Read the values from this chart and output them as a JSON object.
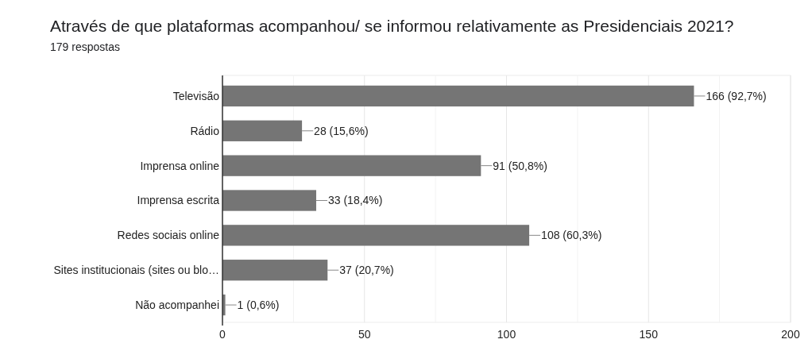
{
  "chart_data": {
    "type": "bar",
    "orientation": "horizontal",
    "title": "Através de que plataformas acompanhou/ se informou relativamente as Presidenciais 2021?",
    "subtitle": "179 respostas",
    "categories": [
      "Televisão",
      "Rádio",
      "Imprensa online",
      "Imprensa escrita",
      "Redes sociais online",
      "Sites institucionais (sites ou blo…",
      "Não acompanhei"
    ],
    "values": [
      166,
      28,
      91,
      33,
      108,
      37,
      1
    ],
    "color": "#757575",
    "value_labels": [
      "166 (92,7%)",
      "28 (15,6%)",
      "91 (50,8%)",
      "33 (18,4%)",
      "108 (60,3%)",
      "37 (20,7%)",
      "1 (0,6%)"
    ],
    "xlim": [
      0,
      200
    ],
    "xticks": [
      0,
      {
        "value": 25,
        "label": null
      },
      50,
      {
        "value": 75,
        "label": null
      },
      100,
      {
        "value": 125,
        "label": null
      },
      150,
      {
        "value": 175,
        "label": null
      },
      200
    ],
    "grid": "x"
  }
}
